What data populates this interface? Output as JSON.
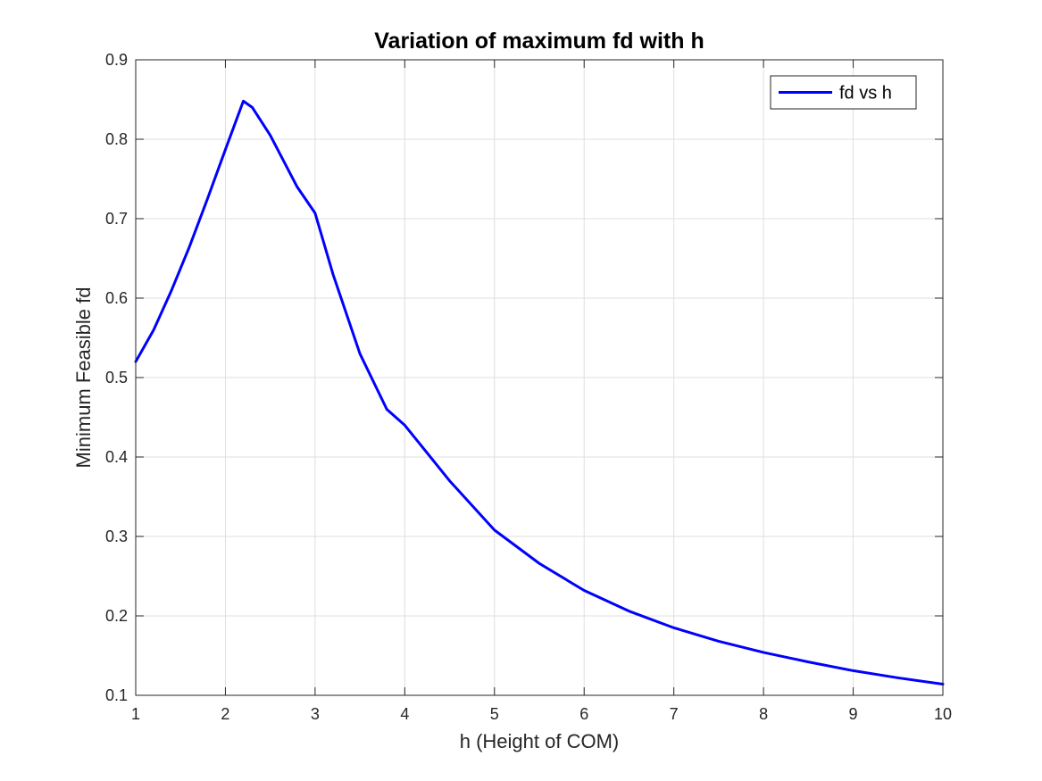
{
  "chart_data": {
    "type": "line",
    "title": "Variation of maximum fd with h",
    "xlabel": "h (Height of COM)",
    "ylabel": "Minimum Feasible fd",
    "xlim": [
      1,
      10
    ],
    "ylim": [
      0.1,
      0.9
    ],
    "xticks": [
      1,
      2,
      3,
      4,
      5,
      6,
      7,
      8,
      9,
      10
    ],
    "yticks": [
      0.1,
      0.2,
      0.3,
      0.4,
      0.5,
      0.6,
      0.7,
      0.8,
      0.9
    ],
    "xtick_labels": [
      "1",
      "2",
      "3",
      "4",
      "5",
      "6",
      "7",
      "8",
      "9",
      "10"
    ],
    "ytick_labels": [
      "0.1",
      "0.2",
      "0.3",
      "0.4",
      "0.5",
      "0.6",
      "0.7",
      "0.8",
      "0.9"
    ],
    "grid": true,
    "legend_position": "top-right",
    "series": [
      {
        "name": "fd vs h",
        "color": "#0000ff",
        "x": [
          1.0,
          1.2,
          1.4,
          1.6,
          1.8,
          2.0,
          2.2,
          2.3,
          2.5,
          2.8,
          3.0,
          3.2,
          3.5,
          3.8,
          4.0,
          4.5,
          5.0,
          5.5,
          6.0,
          6.5,
          7.0,
          7.5,
          8.0,
          8.5,
          9.0,
          9.5,
          10.0
        ],
        "y": [
          0.52,
          0.56,
          0.61,
          0.665,
          0.725,
          0.787,
          0.848,
          0.84,
          0.805,
          0.74,
          0.707,
          0.63,
          0.53,
          0.46,
          0.44,
          0.37,
          0.308,
          0.266,
          0.232,
          0.206,
          0.185,
          0.168,
          0.154,
          0.142,
          0.131,
          0.122,
          0.114
        ]
      }
    ]
  }
}
